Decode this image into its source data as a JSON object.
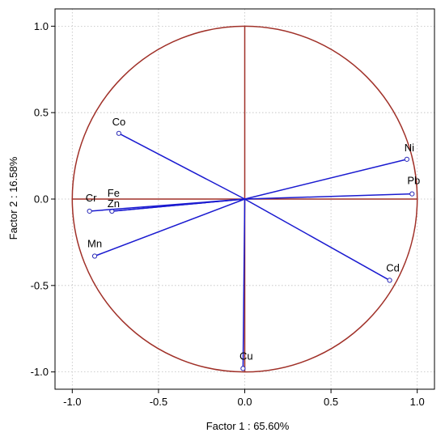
{
  "chart_data": {
    "type": "scatter",
    "subtype": "pca-loadings-circle",
    "title": "",
    "xlabel": "Factor 1 : 65.60%",
    "ylabel": "Factor 2 : 16.58%",
    "xlim": [
      -1.1,
      1.1
    ],
    "ylim": [
      -1.1,
      1.1
    ],
    "xticks": [
      "-1.0",
      "-0.5",
      "0.0",
      "0.5",
      "1.0"
    ],
    "yticks": [
      "1.0",
      "0.5",
      "0.0",
      "-0.5",
      "-1.0"
    ],
    "grid": true,
    "unit_circle": true,
    "points": [
      {
        "label": "Co",
        "x": -0.73,
        "y": 0.38
      },
      {
        "label": "Ni",
        "x": 0.94,
        "y": 0.23
      },
      {
        "label": "Pb",
        "x": 0.97,
        "y": 0.03
      },
      {
        "label": "Fe",
        "x": -0.77,
        "y": -0.07
      },
      {
        "label": "Zn",
        "x": -0.77,
        "y": -0.07
      },
      {
        "label": "Cr",
        "x": -0.9,
        "y": -0.07
      },
      {
        "label": "Mn",
        "x": -0.87,
        "y": -0.33
      },
      {
        "label": "Cd",
        "x": 0.84,
        "y": -0.47
      },
      {
        "label": "Cu",
        "x": -0.01,
        "y": -0.98
      }
    ],
    "colors": {
      "vectors": "#1a1ad0",
      "circle": "#a03028",
      "axes": "#a03028",
      "grid": "#bfbfbf"
    }
  }
}
